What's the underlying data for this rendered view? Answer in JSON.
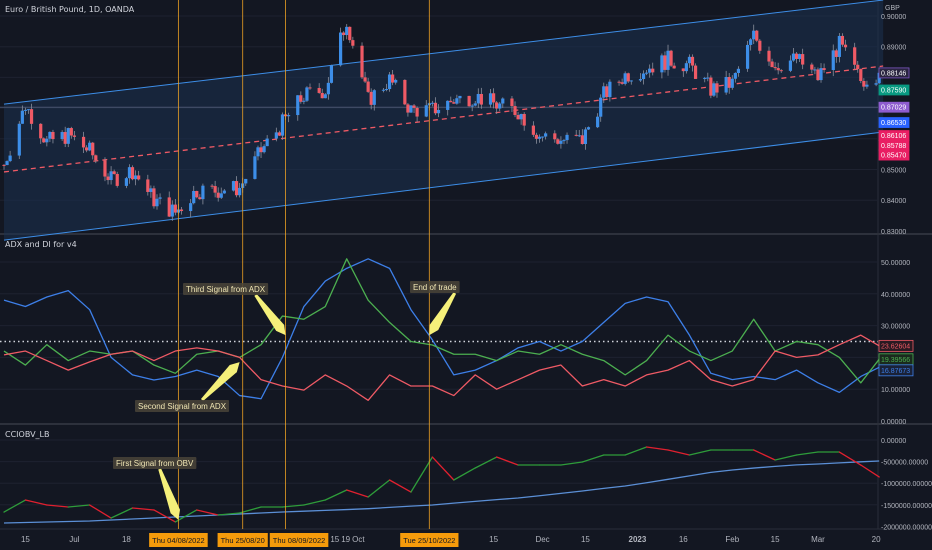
{
  "colors": {
    "background": "#131722",
    "grid": "#1e2230",
    "candle_up": "#3d8ee8",
    "candle_down": "#ef5a65",
    "channel": "#3d8ee8",
    "channel_fill": "#1c3150",
    "channel_mid": "#ef5a65",
    "signal_line": "#f5a623",
    "date_tag": "#f59b0b",
    "adx": "#3d7fe8",
    "di_plus": "#4caf50",
    "di_minus": "#ef5a65",
    "obv_up": "#2e9c3a",
    "obv_down": "#e0202f",
    "obv_ma": "#5b8fd6",
    "arrow": "#f5f07a",
    "note_bg": "#4a4438"
  },
  "chart_data": [
    {
      "type": "candlestick",
      "title": "Euro / British Pound, 1D, OANDA",
      "currency": "GBP",
      "x": [
        "2022-06-08",
        "2022-06-15",
        "2022-06-22",
        "2022-06-29",
        "2022-07-06",
        "2022-07-13",
        "2022-07-20",
        "2022-07-27",
        "2022-08-03",
        "2022-08-10",
        "2022-08-17",
        "2022-08-24",
        "2022-08-31",
        "2022-09-07",
        "2022-09-14",
        "2022-09-21",
        "2022-09-28",
        "2022-10-05",
        "2022-10-12",
        "2022-10-19",
        "2022-10-26",
        "2022-11-02",
        "2022-11-09",
        "2022-11-16",
        "2022-11-23",
        "2022-11-30",
        "2022-12-07",
        "2022-12-14",
        "2022-12-21",
        "2022-12-28",
        "2023-01-04",
        "2023-01-11",
        "2023-01-18",
        "2023-01-25",
        "2023-02-01",
        "2023-02-08",
        "2023-02-15",
        "2023-02-22",
        "2023-03-01",
        "2023-03-08",
        "2023-03-15",
        "2023-03-21"
      ],
      "close": [
        0.8515,
        0.871,
        0.859,
        0.8612,
        0.856,
        0.8466,
        0.8498,
        0.8401,
        0.836,
        0.8433,
        0.8433,
        0.844,
        0.856,
        0.865,
        0.874,
        0.876,
        0.8987,
        0.8726,
        0.8792,
        0.8694,
        0.8694,
        0.8726,
        0.874,
        0.871,
        0.869,
        0.8612,
        0.8596,
        0.8596,
        0.8743,
        0.8808,
        0.8831,
        0.8857,
        0.884,
        0.876,
        0.878,
        0.8935,
        0.884,
        0.886,
        0.88,
        0.8906,
        0.879,
        0.8815
      ],
      "ylim": [
        0.83,
        0.905
      ],
      "yticks": [
        "0.90000",
        "0.89000",
        "0.85000",
        "0.84000",
        "0.83000"
      ],
      "regression_channel": {
        "start": "2022-06-08",
        "end": "2023-03-21",
        "upper": [
          0.8713,
          0.9052
        ],
        "middle": [
          0.8492,
          0.8837
        ],
        "lower": [
          0.827,
          0.8622
        ]
      },
      "horizontal_line": 0.87029,
      "price_tags": [
        {
          "value": "0.88146",
          "price": 0.88146,
          "color": "#2a2540",
          "border": "#7e57c2"
        },
        {
          "value": "0.87590",
          "price": 0.8759,
          "color": "#089981",
          "border": "#089981"
        },
        {
          "value": "0.87029",
          "price": 0.87029,
          "color": "#8e5ccf",
          "border": "#8e5ccf"
        },
        {
          "value": "0.86530",
          "price": 0.8653,
          "color": "#2962ff",
          "border": "#2962ff"
        },
        {
          "value": "0.86106",
          "price": 0.86106,
          "color": "#e91e63",
          "border": "#e91e63"
        },
        {
          "value": "0.85788",
          "price": 0.85788,
          "color": "#e91e63",
          "border": "#e91e63"
        },
        {
          "value": "0.85470",
          "price": 0.8547,
          "color": "#e91e63",
          "border": "#e91e63"
        }
      ]
    },
    {
      "type": "line",
      "title": "ADX and DI for v4",
      "ylim": [
        0,
        55
      ],
      "yticks": [
        "50.00000",
        "40.00000",
        "30.00000",
        "10.00000",
        "0.00000"
      ],
      "threshold": 25,
      "series": [
        {
          "key": "adx",
          "values": [
            38,
            36,
            39,
            41,
            35,
            20,
            14.5,
            12.9,
            14,
            16,
            14,
            8,
            7,
            20,
            36,
            44,
            48,
            51,
            48,
            35,
            25.5,
            14.5,
            16,
            19,
            23,
            25,
            22,
            25,
            31,
            37,
            39,
            37.5,
            27,
            15,
            13,
            14,
            13,
            16,
            12,
            9,
            14,
            16.87673
          ],
          "last": "16.87673"
        },
        {
          "key": "di_plus",
          "values": [
            22,
            17.6,
            24,
            19,
            22,
            21,
            22,
            17.6,
            15,
            21,
            22,
            20,
            24,
            33,
            32,
            36,
            51,
            38,
            31,
            25,
            23.9,
            21,
            21,
            19,
            22,
            21,
            24,
            21,
            19,
            14.5,
            19,
            27,
            22,
            19,
            22,
            32,
            22,
            25,
            24,
            20,
            12,
            19.39566
          ],
          "last": "19.39566"
        },
        {
          "key": "di_minus",
          "values": [
            20.8,
            22,
            19,
            16,
            18.6,
            21,
            22,
            19,
            22,
            23,
            22,
            20,
            13,
            11,
            9.7,
            14.5,
            11,
            6.5,
            14.5,
            11,
            11,
            8,
            14.5,
            10,
            13,
            16,
            17.6,
            11,
            13,
            11,
            14.5,
            16,
            19,
            13,
            11,
            13,
            22,
            20,
            20.8,
            24,
            27,
            23.62604
          ],
          "last": "23.62604"
        }
      ]
    },
    {
      "type": "line",
      "title": "CCIOBV_LB",
      "ylim": [
        -2100000,
        200000
      ],
      "yticks": [
        "0.00000",
        "-500000.00000",
        "-1000000.00000",
        "-1500000.00000",
        "-2000000.00000"
      ],
      "series": [
        {
          "key": "obv",
          "values": [
            -1667000,
            -1389000,
            -1505000,
            -1551000,
            -1505000,
            -1806000,
            -1574000,
            -1620000,
            -1898000,
            -1620000,
            -1736000,
            -1690000,
            -1551000,
            -1551000,
            -1505000,
            -1389000,
            -1157000,
            -1319000,
            -926000,
            -1204000,
            -394000,
            -926000,
            -648000,
            -394000,
            -579000,
            -579000,
            -579000,
            -509000,
            -347000,
            -347000,
            -162000,
            -231000,
            -347000,
            -231000,
            -231000,
            -231000,
            -463000,
            -347000,
            -278000,
            -278000,
            -579000,
            -856000
          ]
        },
        {
          "key": "obv_ma",
          "values": [
            -1921000,
            -1910000,
            -1898000,
            -1887000,
            -1875000,
            -1852000,
            -1829000,
            -1805000,
            -1782000,
            -1759000,
            -1736000,
            -1713000,
            -1690000,
            -1667000,
            -1648000,
            -1629000,
            -1610000,
            -1590000,
            -1560000,
            -1530000,
            -1505000,
            -1462000,
            -1420000,
            -1380000,
            -1343000,
            -1290000,
            -1235000,
            -1180000,
            -1120000,
            -1065000,
            -990000,
            -910000,
            -830000,
            -750000,
            -694000,
            -650000,
            -610000,
            -575000,
            -556000,
            -530000,
            -505000,
            -486000
          ]
        }
      ]
    }
  ],
  "x_axis": {
    "ticks": [
      {
        "label": "15",
        "date": "2022-06-15"
      },
      {
        "label": "Jul",
        "date": "2022-07-01"
      },
      {
        "label": "18",
        "date": "2022-07-18"
      },
      {
        "label": "15",
        "date": "2022-08-15"
      },
      {
        "label": "19",
        "date": "2022-09-19"
      },
      {
        "label": "Oct",
        "date": "2022-10-01"
      },
      {
        "label": "15",
        "date": "2022-11-15"
      },
      {
        "label": "Dec",
        "date": "2022-12-01"
      },
      {
        "label": "15",
        "date": "2022-12-15"
      },
      {
        "label": "2023",
        "date": "2023-01-01",
        "bold": true
      },
      {
        "label": "16",
        "date": "2023-01-16"
      },
      {
        "label": "Feb",
        "date": "2023-02-01"
      },
      {
        "label": "15",
        "date": "2023-02-15"
      },
      {
        "label": "Mar",
        "date": "2023-03-01"
      },
      {
        "label": "20",
        "date": "2023-03-20"
      }
    ],
    "highlighted_dates": [
      {
        "label": "Thu 04/08/2022",
        "date": "2022-08-04"
      },
      {
        "label": "Thu 25/08/20",
        "date": "2022-08-25"
      },
      {
        "label": "Thu 08/09/2022",
        "date": "2022-09-08"
      },
      {
        "label": "Tue 25/10/2022",
        "date": "2022-10-25"
      }
    ]
  },
  "annotations": [
    {
      "text": "First Signal from OBV",
      "pane": 2,
      "target_date": "2022-08-04",
      "target_value": -1850000
    },
    {
      "text": "Second Signal from ADX",
      "pane": 1,
      "target_date": "2022-08-24",
      "target_value": 18.5
    },
    {
      "text": "Third Signal from ADX",
      "pane": 1,
      "target_date": "2022-09-08",
      "target_value": 27
    },
    {
      "text": "End of trade",
      "pane": 1,
      "target_date": "2022-10-25",
      "target_value": 27
    }
  ]
}
